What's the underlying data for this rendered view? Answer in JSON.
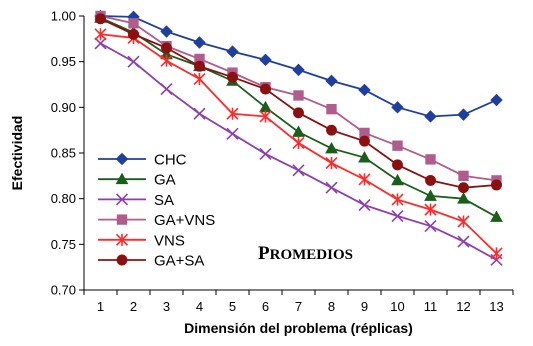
{
  "chart_data": {
    "type": "line",
    "xlabel": "Dimensión del problema (réplicas)",
    "ylabel": "Efectividad",
    "annotation": {
      "first": "P",
      "rest": "ROMEDIOS"
    },
    "x": [
      1,
      2,
      3,
      4,
      5,
      6,
      7,
      8,
      9,
      10,
      11,
      12,
      13
    ],
    "xlim": [
      1,
      13
    ],
    "ylim": [
      0.7,
      1.0
    ],
    "yticks": [
      "0.70",
      "0.75",
      "0.80",
      "0.85",
      "0.90",
      "0.95",
      "1.00"
    ],
    "ytick_values": [
      0.7,
      0.75,
      0.8,
      0.85,
      0.9,
      0.95,
      1.0
    ],
    "legend_position": "left",
    "grid": false,
    "series": [
      {
        "name": "CHC",
        "color": "#1F3FA0",
        "marker": "diamond",
        "values": [
          1.0,
          0.999,
          0.983,
          0.971,
          0.961,
          0.952,
          0.941,
          0.929,
          0.919,
          0.9,
          0.89,
          0.892,
          0.908
        ]
      },
      {
        "name": "GA",
        "color": "#1B5E1B",
        "marker": "triangle",
        "values": [
          0.998,
          0.982,
          0.958,
          0.945,
          0.929,
          0.9,
          0.873,
          0.855,
          0.845,
          0.82,
          0.803,
          0.8,
          0.78
        ]
      },
      {
        "name": "SA",
        "color": "#8E3FAE",
        "marker": "x",
        "values": [
          0.97,
          0.95,
          0.92,
          0.893,
          0.871,
          0.849,
          0.831,
          0.812,
          0.793,
          0.781,
          0.77,
          0.753,
          0.733
        ]
      },
      {
        "name": "GA+VNS",
        "color": "#B05C8C",
        "marker": "square",
        "values": [
          1.0,
          0.992,
          0.967,
          0.953,
          0.938,
          0.922,
          0.913,
          0.898,
          0.872,
          0.858,
          0.843,
          0.825,
          0.82
        ]
      },
      {
        "name": "VNS",
        "color": "#FF2A2A",
        "marker": "asterisk",
        "values": [
          0.98,
          0.976,
          0.951,
          0.931,
          0.893,
          0.89,
          0.861,
          0.839,
          0.821,
          0.799,
          0.788,
          0.775,
          0.74
        ]
      },
      {
        "name": "GA+SA",
        "color": "#8B1010",
        "marker": "circle",
        "values": [
          0.997,
          0.98,
          0.965,
          0.945,
          0.933,
          0.92,
          0.894,
          0.875,
          0.863,
          0.837,
          0.82,
          0.812,
          0.815
        ]
      }
    ]
  }
}
